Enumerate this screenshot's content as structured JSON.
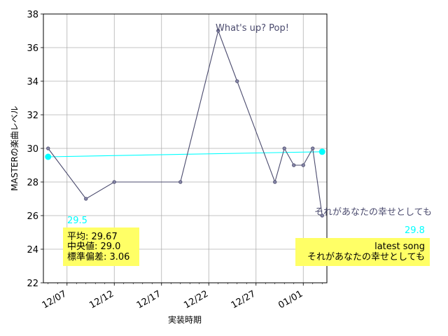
{
  "chart_data": {
    "type": "line",
    "xlabel": "実装時期",
    "ylabel": "MASTERの楽曲レベル",
    "x_ticks": [
      "12/07",
      "12/12",
      "12/17",
      "12/22",
      "12/27",
      "01/01"
    ],
    "ylim": [
      22,
      38
    ],
    "y_ticks": [
      22,
      24,
      26,
      28,
      30,
      32,
      34,
      36,
      38
    ],
    "grid": true,
    "series": [
      {
        "points": [
          {
            "x": "12/05",
            "y": 30
          },
          {
            "x": "12/09",
            "y": 27
          },
          {
            "x": "12/12",
            "y": 28
          },
          {
            "x": "12/19",
            "y": 28
          },
          {
            "x": "12/23",
            "y": 37
          },
          {
            "x": "12/25",
            "y": 34
          },
          {
            "x": "12/29",
            "y": 28
          },
          {
            "x": "12/30",
            "y": 30
          },
          {
            "x": "12/31",
            "y": 29
          },
          {
            "x": "01/01",
            "y": 29
          },
          {
            "x": "01/02",
            "y": 30
          },
          {
            "x": "01/03",
            "y": 26
          }
        ],
        "color": "#4b4b6e"
      },
      {
        "points": [
          {
            "x": "12/05",
            "y": 29.5
          },
          {
            "x": "01/03",
            "y": 29.8
          }
        ],
        "color": "#00ffff"
      }
    ],
    "annotations": {
      "peak_label": "What's up? Pop!",
      "last_label": "それがあなたの幸せとしても",
      "start_trend_value": "29.5",
      "end_trend_value": "29.8"
    },
    "stats_box": {
      "lines": [
        "平均: 29.67",
        "中央値: 29.0",
        "標準偏差:  3.06"
      ]
    },
    "latest_box": {
      "lines": [
        "latest song",
        "それがあなたの幸せとしても"
      ]
    },
    "colors": {
      "line": "#4b4b6e",
      "trend": "#00ffff",
      "box": "#ffff66",
      "grid": "#b0b0b0"
    }
  }
}
